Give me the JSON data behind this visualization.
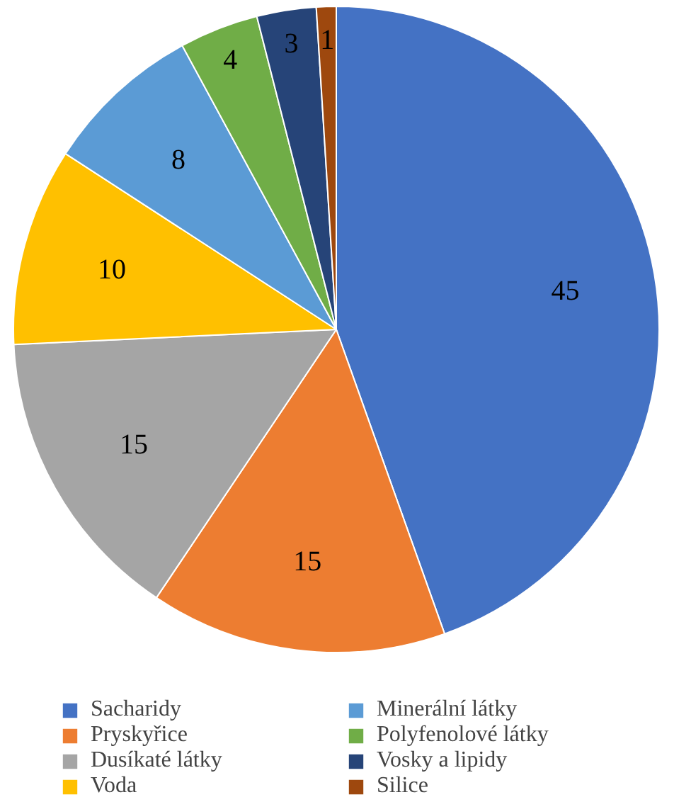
{
  "chart_data": {
    "type": "pie",
    "categories": [
      "Sacharidy",
      "Pryskyřice",
      "Dusíkaté látky",
      "Voda",
      "Minerální látky",
      "Polyfenolové látky",
      "Vosky a lipidy",
      "Silice"
    ],
    "values": [
      45,
      15,
      15,
      10,
      8,
      4,
      3,
      1
    ],
    "colors": [
      "#4472c4",
      "#ed7d31",
      "#a5a5a5",
      "#ffc000",
      "#5b9bd5",
      "#70ad47",
      "#264478",
      "#9e480e"
    ],
    "data_labels": true,
    "legend": "bottom"
  }
}
